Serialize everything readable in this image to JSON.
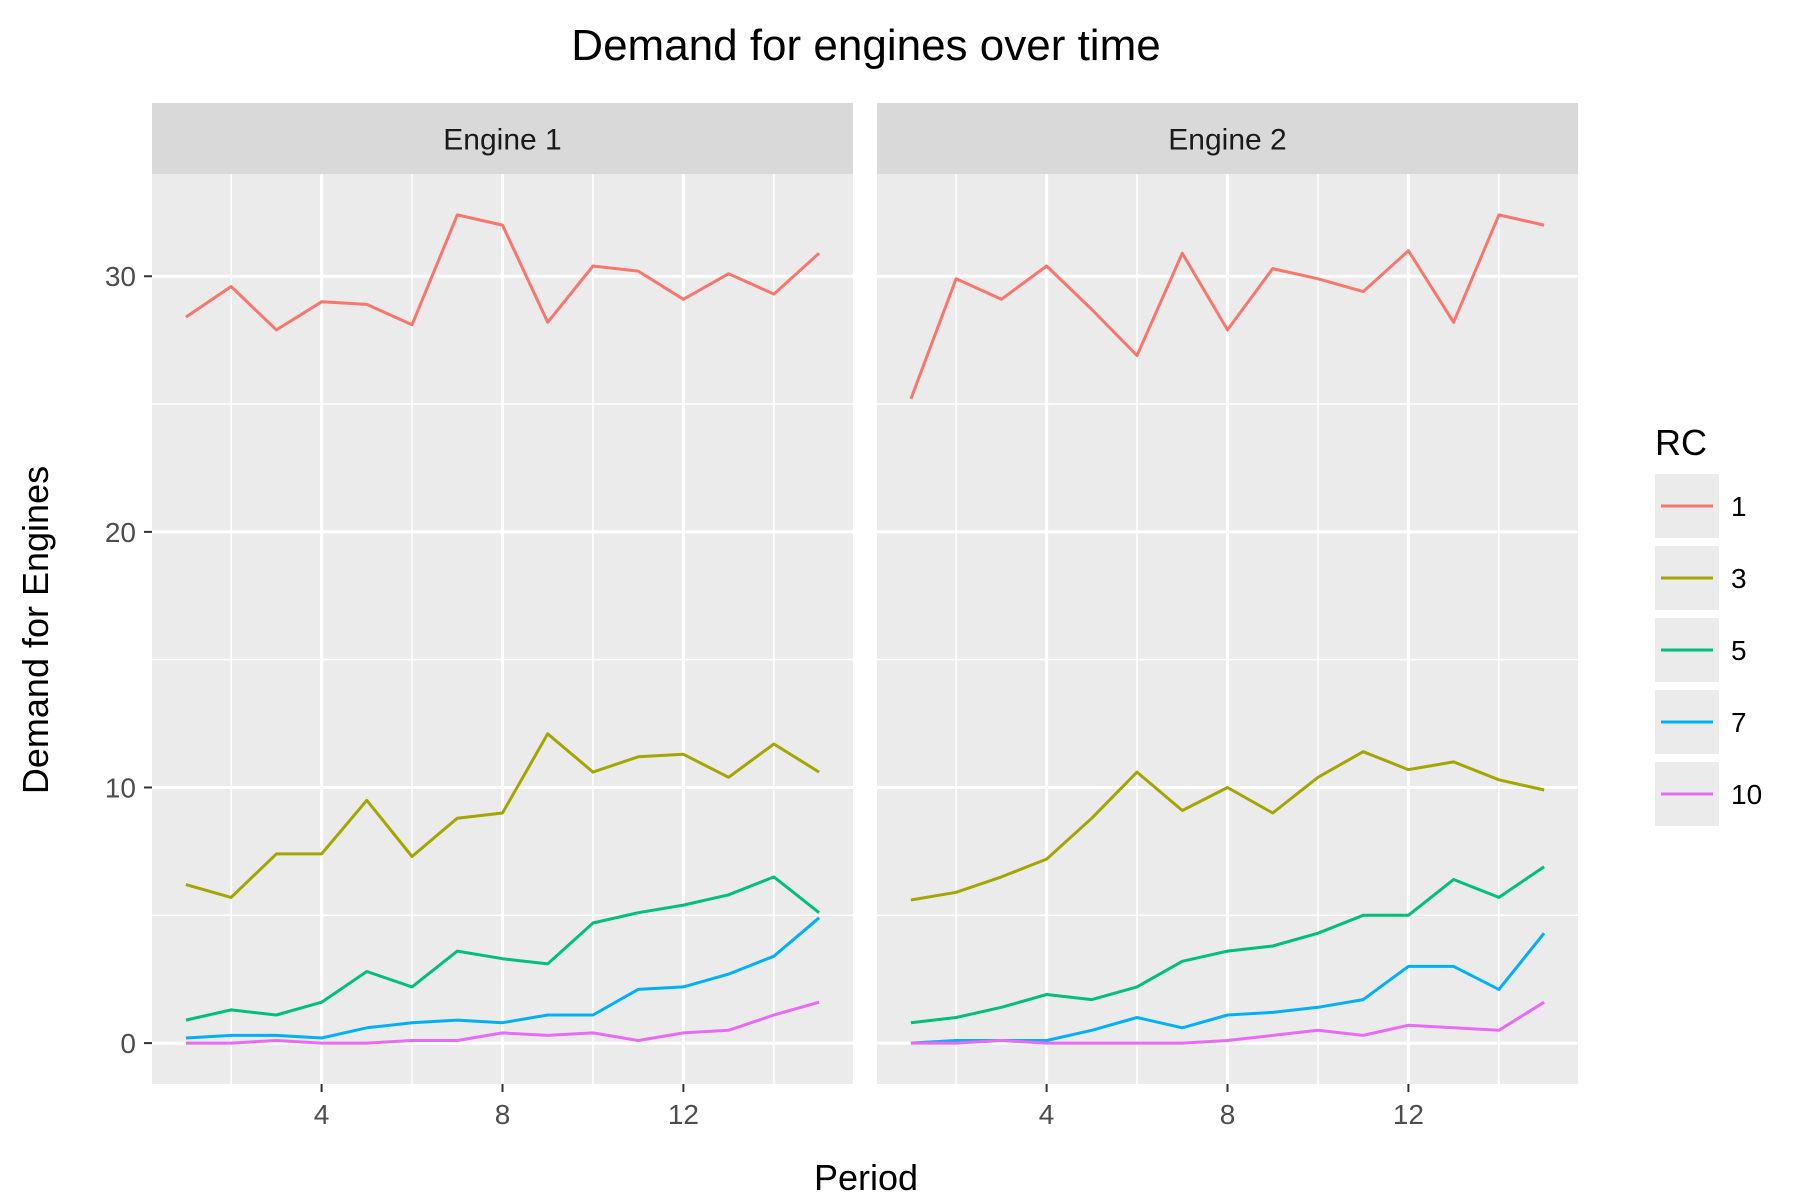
{
  "chart_data": {
    "type": "line",
    "title": "Demand for engines over time",
    "xlabel": "Period",
    "ylabel": "Demand for Engines",
    "x_ticks": [
      4,
      8,
      12
    ],
    "y_ticks": [
      0,
      10,
      20,
      30
    ],
    "xlim": [
      0.25,
      15.75
    ],
    "ylim": [
      -1.6,
      34
    ],
    "grid": true,
    "legend": {
      "title": "RC",
      "placement": "right"
    },
    "colors": {
      "1": "#F8766D",
      "3": "#A3A500",
      "5": "#00BF7D",
      "7": "#00B0F6",
      "10": "#E76BF3"
    },
    "x": [
      1,
      2,
      3,
      4,
      5,
      6,
      7,
      8,
      9,
      10,
      11,
      12,
      13,
      14,
      15
    ],
    "panels": [
      {
        "label": "Engine 1",
        "series": [
          {
            "name": "1",
            "values": [
              28.4,
              29.6,
              27.9,
              29.0,
              28.9,
              28.1,
              32.4,
              32.0,
              28.2,
              30.4,
              30.2,
              29.1,
              30.1,
              29.3,
              30.9
            ]
          },
          {
            "name": "3",
            "values": [
              6.2,
              5.7,
              7.4,
              7.4,
              9.5,
              7.3,
              8.8,
              9.0,
              12.1,
              10.6,
              11.2,
              11.3,
              10.4,
              11.7,
              10.6
            ]
          },
          {
            "name": "5",
            "values": [
              0.9,
              1.3,
              1.1,
              1.6,
              2.8,
              2.2,
              3.6,
              3.3,
              3.1,
              4.7,
              5.1,
              5.4,
              5.8,
              6.5,
              5.1
            ]
          },
          {
            "name": "7",
            "values": [
              0.2,
              0.3,
              0.3,
              0.2,
              0.6,
              0.8,
              0.9,
              0.8,
              1.1,
              1.1,
              2.1,
              2.2,
              2.7,
              3.4,
              4.9
            ]
          },
          {
            "name": "10",
            "values": [
              0.0,
              0.0,
              0.1,
              0.0,
              0.0,
              0.1,
              0.1,
              0.4,
              0.3,
              0.4,
              0.1,
              0.4,
              0.5,
              1.1,
              1.6
            ]
          }
        ]
      },
      {
        "label": "Engine 2",
        "series": [
          {
            "name": "1",
            "values": [
              25.2,
              29.9,
              29.1,
              30.4,
              28.7,
              26.9,
              30.9,
              27.9,
              30.3,
              29.9,
              29.4,
              31.0,
              28.2,
              32.4,
              32.0
            ]
          },
          {
            "name": "3",
            "values": [
              5.6,
              5.9,
              6.5,
              7.2,
              8.8,
              10.6,
              9.1,
              10.0,
              9.0,
              10.4,
              11.4,
              10.7,
              11.0,
              10.3,
              9.9
            ]
          },
          {
            "name": "5",
            "values": [
              0.8,
              1.0,
              1.4,
              1.9,
              1.7,
              2.2,
              3.2,
              3.6,
              3.8,
              4.3,
              5.0,
              5.0,
              6.4,
              5.7,
              6.9
            ]
          },
          {
            "name": "7",
            "values": [
              0.0,
              0.1,
              0.1,
              0.1,
              0.5,
              1.0,
              0.6,
              1.1,
              1.2,
              1.4,
              1.7,
              3.0,
              3.0,
              2.1,
              4.3
            ]
          },
          {
            "name": "10",
            "values": [
              0.0,
              0.0,
              0.1,
              0.0,
              0.0,
              0.0,
              0.0,
              0.1,
              0.3,
              0.5,
              0.3,
              0.7,
              0.6,
              0.5,
              1.6
            ]
          }
        ]
      }
    ]
  }
}
